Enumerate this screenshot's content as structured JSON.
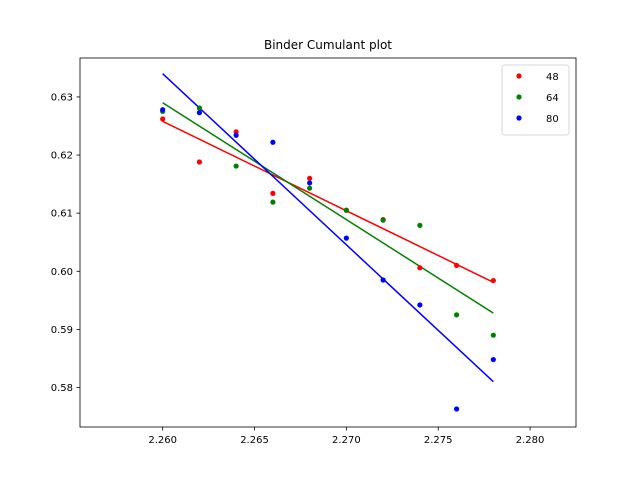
{
  "chart_data": {
    "type": "scatter",
    "title": "Binder Cumulant plot",
    "xlabel": "",
    "ylabel": "",
    "xlim": [
      2.2555,
      2.2825
    ],
    "ylim": [
      0.5732,
      0.6367
    ],
    "xticks": [
      "2.260",
      "2.265",
      "2.270",
      "2.275",
      "2.280"
    ],
    "yticks": [
      "0.58",
      "0.59",
      "0.60",
      "0.61",
      "0.62",
      "0.63"
    ],
    "grid": false,
    "legend_position": "top-right",
    "x": [
      2.26,
      2.262,
      2.264,
      2.266,
      2.268,
      2.27,
      2.272,
      2.274,
      2.276,
      2.278
    ],
    "series": [
      {
        "name": "48",
        "color": "#ff0000",
        "values": [
          0.6262,
          0.6188,
          0.624,
          0.6134,
          0.616,
          0.6105,
          0.6089,
          0.6006,
          0.601,
          0.5984
        ],
        "fit": [
          0.6258,
          0.5981
        ]
      },
      {
        "name": "64",
        "color": "#008000",
        "values": [
          0.6275,
          0.6281,
          0.6181,
          0.6119,
          0.6143,
          0.6105,
          0.6088,
          0.6079,
          0.5925,
          0.589
        ],
        "fit": [
          0.629,
          0.5928
        ]
      },
      {
        "name": "80",
        "color": "#0000ff",
        "values": [
          0.6278,
          0.6273,
          0.6234,
          0.6222,
          0.6152,
          0.6057,
          0.5985,
          0.5942,
          0.5763,
          0.5848
        ],
        "fit": [
          0.634,
          0.581
        ]
      }
    ]
  }
}
